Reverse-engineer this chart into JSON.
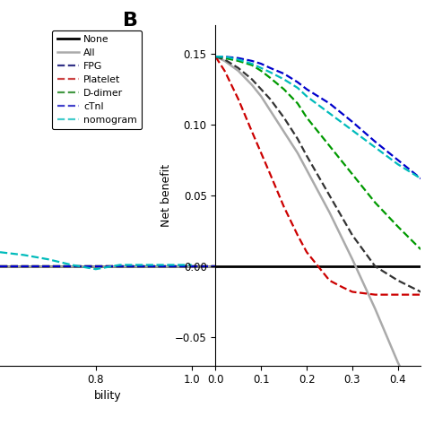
{
  "title_B": "B",
  "ylabel_B": "Net benefit",
  "ylim": [
    -0.07,
    0.17
  ],
  "xlim_B": [
    0.0,
    0.45
  ],
  "xlim_A": [
    0.6,
    1.05
  ],
  "yticks_B": [
    -0.05,
    0.0,
    0.05,
    0.1,
    0.15
  ],
  "xticks_B": [
    0.0,
    0.1,
    0.2,
    0.3,
    0.4
  ],
  "xticks_A": [
    0.8,
    1.0
  ],
  "legend_entries": [
    "None",
    "All",
    "FPG",
    "Platelet",
    "D-dimer",
    "cTnI",
    "nomogram"
  ],
  "line_colors": {
    "None": "#000000",
    "All": "#aaaaaa",
    "FPG": "#333333",
    "Platelet": "#cc0000",
    "D-dimer": "#009900",
    "cTnI": "#0000cc",
    "nomogram": "#00bbbb"
  },
  "line_styles": {
    "None": "solid",
    "All": "solid",
    "FPG": "dashed",
    "Platelet": "dashed",
    "D-dimer": "dashed",
    "cTnI": "dashed",
    "nomogram": "dashed"
  },
  "line_widths": {
    "None": 2.0,
    "All": 1.8,
    "FPG": 1.6,
    "Platelet": 1.6,
    "D-dimer": 1.6,
    "cTnI": 1.6,
    "nomogram": 1.6
  },
  "curves_B": {
    "None": {
      "x": [
        0.0,
        0.45
      ],
      "y": [
        0.0,
        0.0
      ]
    },
    "All": {
      "x": [
        0.0,
        0.02,
        0.05,
        0.08,
        0.1,
        0.12,
        0.15,
        0.18,
        0.2,
        0.25,
        0.3,
        0.35,
        0.4,
        0.45
      ],
      "y": [
        0.148,
        0.145,
        0.138,
        0.128,
        0.12,
        0.11,
        0.095,
        0.08,
        0.068,
        0.038,
        0.005,
        -0.03,
        -0.068,
        -0.1
      ]
    },
    "FPG": {
      "x": [
        0.0,
        0.02,
        0.05,
        0.08,
        0.1,
        0.12,
        0.15,
        0.18,
        0.2,
        0.25,
        0.3,
        0.35,
        0.4,
        0.45
      ],
      "y": [
        0.148,
        0.146,
        0.14,
        0.132,
        0.125,
        0.118,
        0.105,
        0.09,
        0.078,
        0.05,
        0.022,
        0.0,
        -0.01,
        -0.018
      ]
    },
    "Platelet": {
      "x": [
        0.0,
        0.02,
        0.05,
        0.08,
        0.1,
        0.12,
        0.15,
        0.18,
        0.2,
        0.25,
        0.28,
        0.3,
        0.35,
        0.4,
        0.45
      ],
      "y": [
        0.148,
        0.138,
        0.118,
        0.095,
        0.08,
        0.065,
        0.042,
        0.022,
        0.01,
        -0.01,
        -0.015,
        -0.018,
        -0.02,
        -0.02,
        -0.02
      ]
    },
    "D-dimer": {
      "x": [
        0.0,
        0.02,
        0.05,
        0.08,
        0.1,
        0.12,
        0.15,
        0.18,
        0.2,
        0.25,
        0.3,
        0.35,
        0.4,
        0.45
      ],
      "y": [
        0.148,
        0.147,
        0.145,
        0.142,
        0.138,
        0.133,
        0.125,
        0.115,
        0.105,
        0.085,
        0.065,
        0.045,
        0.028,
        0.012
      ]
    },
    "cTnI": {
      "x": [
        0.0,
        0.02,
        0.05,
        0.08,
        0.1,
        0.12,
        0.15,
        0.18,
        0.2,
        0.25,
        0.3,
        0.35,
        0.4,
        0.45
      ],
      "y": [
        0.148,
        0.148,
        0.147,
        0.145,
        0.143,
        0.14,
        0.136,
        0.13,
        0.125,
        0.115,
        0.102,
        0.088,
        0.075,
        0.062
      ]
    },
    "nomogram": {
      "x": [
        0.0,
        0.02,
        0.05,
        0.08,
        0.1,
        0.12,
        0.15,
        0.18,
        0.2,
        0.25,
        0.3,
        0.35,
        0.4,
        0.45
      ],
      "y": [
        0.148,
        0.148,
        0.146,
        0.143,
        0.14,
        0.137,
        0.132,
        0.126,
        0.12,
        0.108,
        0.096,
        0.084,
        0.072,
        0.062
      ]
    }
  },
  "curves_A": {
    "None": {
      "x": [
        0.6,
        1.05
      ],
      "y": [
        0.0,
        0.0
      ]
    },
    "All": {
      "x": [
        0.6,
        1.05
      ],
      "y": [
        0.0,
        0.0
      ]
    },
    "FPG": {
      "x": [
        0.6,
        1.05
      ],
      "y": [
        0.0,
        0.0
      ]
    },
    "Platelet": {
      "x": [
        0.6,
        1.05
      ],
      "y": [
        0.0,
        0.0
      ]
    },
    "D-dimer": {
      "x": [
        0.6,
        1.05
      ],
      "y": [
        0.0,
        0.0
      ]
    },
    "cTnI": {
      "x": [
        0.6,
        1.05
      ],
      "y": [
        0.0,
        0.0
      ]
    },
    "nomogram": {
      "x": [
        0.6,
        0.65,
        0.7,
        0.75,
        0.8,
        0.85,
        0.9,
        0.95,
        1.0
      ],
      "y": [
        0.01,
        0.008,
        0.005,
        0.001,
        -0.002,
        0.001,
        0.001,
        0.001,
        0.001
      ]
    }
  },
  "xlabel_A": "bility",
  "legend_colors_use_gray": true
}
